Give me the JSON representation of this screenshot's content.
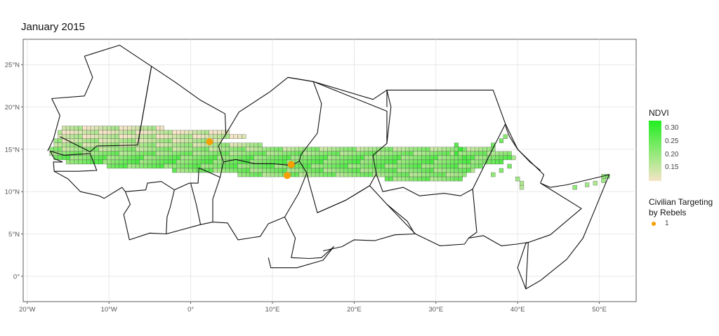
{
  "title": "January 2015",
  "chart_data": {
    "type": "map",
    "xlim": [
      -20.5,
      54.5
    ],
    "ylim": [
      -3,
      28
    ],
    "x_ticks": [
      {
        "v": -20,
        "label": "20°W"
      },
      {
        "v": -10,
        "label": "10°W"
      },
      {
        "v": 0,
        "label": "0°"
      },
      {
        "v": 10,
        "label": "10°E"
      },
      {
        "v": 20,
        "label": "20°E"
      },
      {
        "v": 30,
        "label": "30°E"
      },
      {
        "v": 40,
        "label": "40°E"
      },
      {
        "v": 50,
        "label": "50°E"
      }
    ],
    "y_ticks": [
      {
        "v": 0,
        "label": "0°"
      },
      {
        "v": 5,
        "label": "5°N"
      },
      {
        "v": 10,
        "label": "10°N"
      },
      {
        "v": 15,
        "label": "15°N"
      },
      {
        "v": 20,
        "label": "20°N"
      },
      {
        "v": 25,
        "label": "25°N"
      }
    ],
    "grid": true,
    "legend": {
      "ndvi_title": "NDVI",
      "ndvi_ticks": [
        "0.30",
        "0.25",
        "0.20",
        "0.15"
      ],
      "ndvi_tick_values": [
        0.3,
        0.25,
        0.2,
        0.15
      ],
      "ndvi_range": [
        0.1,
        0.33
      ],
      "ndvi_color_low": "#f5e4c6",
      "ndvi_color_high": "#22ee22",
      "event_title_line1": "Civilian Targeting",
      "event_title_line2": "by Rebels",
      "event_label": "1",
      "event_color": "#f5a000",
      "placement": "right"
    },
    "events": [
      {
        "lon": 2.3,
        "lat": 15.9
      },
      {
        "lon": 12.3,
        "lat": 13.2
      },
      {
        "lon": 11.8,
        "lat": 11.9
      }
    ],
    "cell_rows": [
      {
        "lat": 17.5,
        "lon_from": -15.5,
        "lon_to": -3.5,
        "ndvi": 0.14
      },
      {
        "lat": 17.0,
        "lon_from": -16.0,
        "lon_to": 4.5,
        "ndvi": 0.13
      },
      {
        "lat": 16.5,
        "lon_from": -16.0,
        "lon_to": 6.5,
        "ndvi": 0.14
      },
      {
        "lat": 16.0,
        "lon_from": -16.5,
        "lon_to": 3.5,
        "ndvi": 0.16
      },
      {
        "lat": 15.5,
        "lon_from": -16.5,
        "lon_to": 8.5,
        "ndvi": 0.17
      },
      {
        "lat": 15.0,
        "lon_from": -17.0,
        "lon_to": 37.0,
        "ndvi": 0.19
      },
      {
        "lat": 14.5,
        "lon_from": -17.0,
        "lon_to": 39.0,
        "ndvi": 0.21
      },
      {
        "lat": 14.0,
        "lon_from": -16.5,
        "lon_to": 39.5,
        "ndvi": 0.23
      },
      {
        "lat": 13.5,
        "lon_from": -15.0,
        "lon_to": 38.0,
        "ndvi": 0.24
      },
      {
        "lat": 13.0,
        "lon_from": -10.0,
        "lon_to": 35.5,
        "ndvi": 0.23
      },
      {
        "lat": 12.5,
        "lon_from": -2.0,
        "lon_to": 34.5,
        "ndvi": 0.22
      },
      {
        "lat": 12.0,
        "lon_from": 6.0,
        "lon_to": 33.5,
        "ndvi": 0.21
      },
      {
        "lat": 11.5,
        "lon_from": 24.0,
        "lon_to": 33.0,
        "ndvi": 0.22
      }
    ],
    "cell_clusters": [
      {
        "lon": 38.5,
        "lat": 16.5,
        "ndvi": 0.22
      },
      {
        "lon": 38.0,
        "lat": 16.0,
        "ndvi": 0.24
      },
      {
        "lon": 37.0,
        "lat": 15.5,
        "ndvi": 0.25
      },
      {
        "lon": 39.0,
        "lat": 13.0,
        "ndvi": 0.24
      },
      {
        "lon": 38.0,
        "lat": 12.5,
        "ndvi": 0.22
      },
      {
        "lon": 37.0,
        "lat": 12.0,
        "ndvi": 0.21
      },
      {
        "lon": 40.0,
        "lat": 11.5,
        "ndvi": 0.19
      },
      {
        "lon": 40.5,
        "lat": 11.0,
        "ndvi": 0.18
      },
      {
        "lon": 40.5,
        "lat": 10.5,
        "ndvi": 0.17
      },
      {
        "lon": 47.0,
        "lat": 10.5,
        "ndvi": 0.21
      },
      {
        "lon": 48.5,
        "lat": 10.8,
        "ndvi": 0.19
      },
      {
        "lon": 49.5,
        "lat": 11.0,
        "ndvi": 0.18
      },
      {
        "lon": 50.5,
        "lat": 11.3,
        "ndvi": 0.2
      },
      {
        "lon": 51.0,
        "lat": 11.8,
        "ndvi": 0.22
      },
      {
        "lon": 50.5,
        "lat": 11.8,
        "ndvi": 0.21
      },
      {
        "lon": 32.5,
        "lat": 14.5,
        "ndvi": 0.3
      },
      {
        "lon": 33.0,
        "lat": 15.0,
        "ndvi": 0.31
      },
      {
        "lon": 32.5,
        "lat": 15.5,
        "ndvi": 0.27
      },
      {
        "lon": 33.5,
        "lat": 14.0,
        "ndvi": 0.29
      }
    ],
    "borders": [
      [
        [
          -17.5,
          14.8
        ],
        [
          -16.8,
          16.2
        ],
        [
          -16.0,
          19.0
        ],
        [
          -17.0,
          21.0
        ],
        [
          -13.0,
          21.3
        ],
        [
          -12.0,
          23.5
        ],
        [
          -13.0,
          26.0
        ],
        [
          -8.7,
          27.3
        ],
        [
          -4.8,
          24.8
        ],
        [
          -6.5,
          15.5
        ],
        [
          -11.5,
          15.4
        ],
        [
          -12.3,
          14.7
        ],
        [
          -16.0,
          16.5
        ]
      ],
      [
        [
          -17.2,
          14.8
        ],
        [
          -15.5,
          14.3
        ],
        [
          -12.3,
          14.5
        ],
        [
          -11.5,
          12.5
        ],
        [
          -13.8,
          12.4
        ],
        [
          -16.7,
          12.4
        ],
        [
          -16.8,
          13.5
        ],
        [
          -15.7,
          13.5
        ],
        [
          -16.7,
          13.9
        ],
        [
          -17.2,
          14.8
        ]
      ],
      [
        [
          -16.7,
          12.4
        ],
        [
          -15.0,
          11.5
        ],
        [
          -13.5,
          10.0
        ],
        [
          -11.2,
          9.5
        ],
        [
          -10.6,
          9.2
        ],
        [
          -8.4,
          10.5
        ],
        [
          -8.0,
          10.0
        ],
        [
          -5.5,
          10.2
        ],
        [
          -5.3,
          11.0
        ],
        [
          -3.6,
          11.2
        ],
        [
          -2.0,
          10.2
        ],
        [
          -0.2,
          11.0
        ],
        [
          0.9,
          11.0
        ],
        [
          1.0,
          12.8
        ],
        [
          3.6,
          11.7
        ],
        [
          4.0,
          13.5
        ],
        [
          3.4,
          15.4
        ],
        [
          4.3,
          16.8
        ],
        [
          4.2,
          19.2
        ],
        [
          1.2,
          20.8
        ],
        [
          -2.0,
          23.0
        ],
        [
          -4.8,
          24.8
        ],
        [
          -6.5,
          15.5
        ]
      ],
      [
        [
          -8.0,
          10.0
        ],
        [
          -7.4,
          8.5
        ],
        [
          -8.2,
          7.3
        ],
        [
          -7.5,
          4.3
        ],
        [
          -5.0,
          5.1
        ],
        [
          -3.0,
          5.0
        ],
        [
          -2.9,
          7.0
        ],
        [
          -2.5,
          8.2
        ],
        [
          -2.0,
          10.2
        ]
      ],
      [
        [
          -3.0,
          5.0
        ],
        [
          1.2,
          6.1
        ],
        [
          0.7,
          8.4
        ],
        [
          0.0,
          11.0
        ]
      ],
      [
        [
          1.2,
          6.1
        ],
        [
          2.7,
          6.4
        ],
        [
          2.7,
          9.1
        ],
        [
          3.6,
          11.7
        ]
      ],
      [
        [
          2.7,
          6.4
        ],
        [
          4.5,
          6.3
        ],
        [
          5.8,
          4.3
        ],
        [
          7.1,
          4.5
        ],
        [
          8.5,
          4.7
        ],
        [
          9.5,
          6.2
        ],
        [
          11.5,
          7.0
        ],
        [
          13.2,
          9.8
        ],
        [
          14.2,
          12.2
        ],
        [
          13.3,
          13.6
        ],
        [
          12.3,
          13.1
        ],
        [
          10.0,
          13.3
        ],
        [
          7.8,
          13.3
        ],
        [
          5.5,
          13.8
        ],
        [
          4.0,
          13.5
        ]
      ],
      [
        [
          4.3,
          16.8
        ],
        [
          5.9,
          19.4
        ],
        [
          9.7,
          21.8
        ],
        [
          11.9,
          23.5
        ],
        [
          15.0,
          23.0
        ],
        [
          16.0,
          20.4
        ],
        [
          15.5,
          16.9
        ],
        [
          13.5,
          14.4
        ],
        [
          13.3,
          13.6
        ]
      ],
      [
        [
          11.9,
          23.5
        ],
        [
          15.0,
          23.0
        ],
        [
          24.0,
          19.5
        ],
        [
          24.0,
          15.7
        ],
        [
          22.3,
          14.3
        ],
        [
          22.7,
          12.1
        ],
        [
          21.9,
          10.7
        ],
        [
          19.0,
          9.0
        ],
        [
          15.5,
          7.5
        ],
        [
          14.5,
          11.0
        ],
        [
          14.2,
          12.2
        ]
      ],
      [
        [
          11.5,
          7.0
        ],
        [
          12.8,
          4.5
        ],
        [
          12.3,
          2.2
        ],
        [
          14.5,
          2.1
        ],
        [
          16.0,
          2.2
        ],
        [
          17.5,
          3.5
        ],
        [
          16.2,
          1.9
        ],
        [
          13.0,
          1.0
        ],
        [
          9.8,
          1.0
        ],
        [
          9.5,
          2.2
        ]
      ],
      [
        [
          15.5,
          7.5
        ],
        [
          19.0,
          9.0
        ],
        [
          21.9,
          10.7
        ],
        [
          24.0,
          8.5
        ],
        [
          26.5,
          6.5
        ],
        [
          27.4,
          5.0
        ],
        [
          25.0,
          4.9
        ],
        [
          22.5,
          4.2
        ],
        [
          20.0,
          4.3
        ],
        [
          18.5,
          3.5
        ],
        [
          16.2,
          3.0
        ]
      ],
      [
        [
          15.0,
          23.0
        ],
        [
          22.3,
          20.9
        ],
        [
          24.0,
          22.0
        ],
        [
          24.5,
          20.0
        ],
        [
          24.0,
          15.7
        ]
      ],
      [
        [
          24.0,
          20.0
        ],
        [
          24.0,
          22.0
        ],
        [
          37.0,
          22.0
        ],
        [
          38.5,
          18.0
        ],
        [
          36.5,
          14.2
        ],
        [
          34.5,
          10.3
        ],
        [
          33.0,
          9.5
        ],
        [
          31.0,
          9.8
        ],
        [
          28.0,
          9.5
        ],
        [
          26.0,
          10.5
        ],
        [
          23.5,
          10.0
        ],
        [
          22.7,
          12.1
        ]
      ],
      [
        [
          24.0,
          8.5
        ],
        [
          27.5,
          5.0
        ],
        [
          30.5,
          3.6
        ],
        [
          33.5,
          3.8
        ],
        [
          34.0,
          4.5
        ],
        [
          35.0,
          5.2
        ],
        [
          34.5,
          10.3
        ]
      ],
      [
        [
          34.0,
          4.5
        ],
        [
          35.8,
          4.8
        ],
        [
          38.0,
          3.6
        ],
        [
          39.9,
          3.8
        ],
        [
          41.3,
          4.0
        ],
        [
          41.0,
          -1.5
        ],
        [
          40.0,
          1.0
        ],
        [
          41.0,
          3.9
        ],
        [
          44.0,
          4.9
        ],
        [
          47.8,
          8.0
        ],
        [
          42.8,
          11.0
        ],
        [
          43.2,
          12.0
        ],
        [
          40.0,
          15.0
        ],
        [
          38.5,
          18.0
        ]
      ],
      [
        [
          38.5,
          18.0
        ],
        [
          38.6,
          17.5
        ],
        [
          39.0,
          16.5
        ],
        [
          40.0,
          15.0
        ],
        [
          41.5,
          13.5
        ],
        [
          42.8,
          12.5
        ]
      ],
      [
        [
          42.8,
          11.0
        ],
        [
          44.0,
          10.5
        ],
        [
          46.0,
          10.8
        ],
        [
          49.0,
          11.5
        ],
        [
          51.2,
          12.0
        ],
        [
          49.5,
          8.0
        ],
        [
          48.0,
          4.5
        ],
        [
          46.0,
          2.0
        ],
        [
          42.8,
          -0.5
        ],
        [
          41.0,
          -1.5
        ]
      ]
    ]
  }
}
